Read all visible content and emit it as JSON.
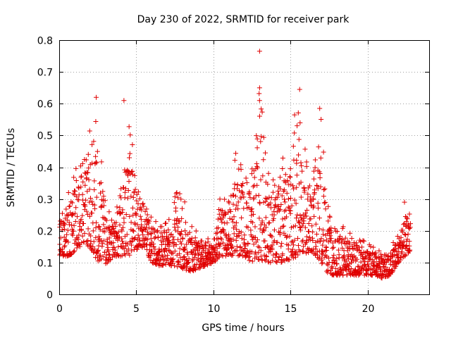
{
  "chart_data": {
    "type": "scatter",
    "title": "Day 230 of 2022, SRMTID for receiver park",
    "xlabel": "GPS time / hours",
    "ylabel": "SRMTID / TECUs",
    "xlim": [
      0,
      24
    ],
    "ylim": [
      0,
      0.8
    ],
    "x_ticks": [
      0,
      5,
      10,
      15,
      20
    ],
    "x_tick_labels": [
      "0",
      "5",
      "10",
      "15",
      "20"
    ],
    "y_ticks": [
      0,
      0.1,
      0.2,
      0.3,
      0.4,
      0.5,
      0.6,
      0.7,
      0.8
    ],
    "y_tick_labels": [
      "0",
      "0.1",
      "0.2",
      "0.3",
      "0.4",
      "0.5",
      "0.6",
      "0.7",
      "0.8"
    ],
    "grid": true,
    "marker": "+",
    "color": "#e00000",
    "data_range_hours": [
      0,
      22.8
    ],
    "envelope_hours": [
      0,
      0.5,
      1.0,
      1.5,
      2.0,
      2.5,
      3.0,
      3.5,
      4.0,
      4.5,
      5.0,
      5.5,
      6.0,
      6.5,
      7.0,
      7.5,
      8.0,
      8.5,
      9.0,
      9.5,
      10.0,
      10.5,
      11.0,
      11.5,
      12.0,
      12.5,
      13.0,
      13.5,
      14.0,
      14.5,
      15.0,
      15.5,
      16.0,
      16.5,
      17.0,
      17.5,
      18.0,
      18.5,
      19.0,
      19.5,
      20.0,
      20.5,
      21.0,
      21.5,
      22.0,
      22.5,
      22.8
    ],
    "envelope_low": [
      0.12,
      0.12,
      0.13,
      0.16,
      0.15,
      0.1,
      0.09,
      0.12,
      0.12,
      0.12,
      0.14,
      0.15,
      0.1,
      0.09,
      0.09,
      0.09,
      0.08,
      0.07,
      0.08,
      0.09,
      0.1,
      0.12,
      0.12,
      0.12,
      0.12,
      0.1,
      0.1,
      0.1,
      0.1,
      0.1,
      0.11,
      0.12,
      0.13,
      0.13,
      0.1,
      0.06,
      0.06,
      0.06,
      0.06,
      0.06,
      0.06,
      0.06,
      0.05,
      0.06,
      0.1,
      0.12,
      0.14
    ],
    "envelope_high": [
      0.26,
      0.3,
      0.4,
      0.42,
      0.52,
      0.58,
      0.3,
      0.22,
      0.35,
      0.58,
      0.38,
      0.33,
      0.25,
      0.25,
      0.22,
      0.32,
      0.34,
      0.22,
      0.2,
      0.18,
      0.18,
      0.33,
      0.3,
      0.47,
      0.38,
      0.42,
      0.72,
      0.38,
      0.4,
      0.44,
      0.5,
      0.63,
      0.44,
      0.38,
      0.58,
      0.26,
      0.22,
      0.22,
      0.2,
      0.18,
      0.17,
      0.15,
      0.13,
      0.15,
      0.2,
      0.26,
      0.26
    ],
    "notable_points": [
      {
        "x": 2.4,
        "y": 0.62
      },
      {
        "x": 4.2,
        "y": 0.61
      },
      {
        "x": 13.0,
        "y": 0.765
      },
      {
        "x": 13.0,
        "y": 0.65
      },
      {
        "x": 15.6,
        "y": 0.645
      },
      {
        "x": 16.9,
        "y": 0.585
      },
      {
        "x": 22.4,
        "y": 0.29
      }
    ]
  }
}
